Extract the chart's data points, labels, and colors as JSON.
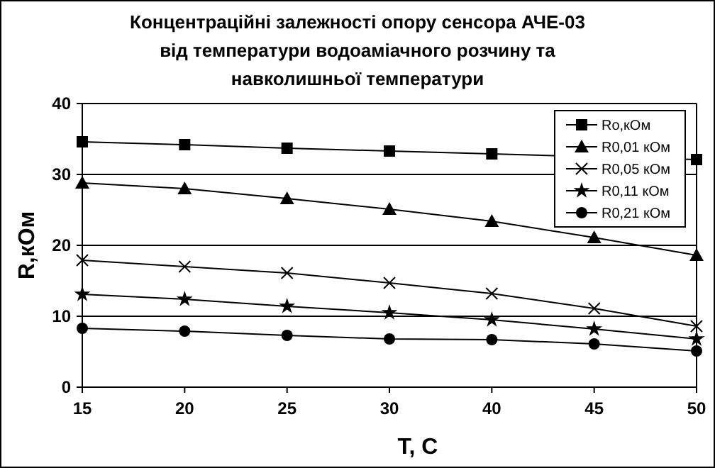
{
  "chart_data": {
    "type": "line",
    "title": "Концентраційні залежності опору сенсора АЧЕ-03\nвід температури водоаміачного розчину та\nнавколишньої температури",
    "xlabel": "T, C",
    "ylabel": "R,кОм",
    "categories": [
      "15",
      "20",
      "25",
      "30",
      "40",
      "45",
      "50"
    ],
    "ylim": [
      0,
      40
    ],
    "yticks": [
      0,
      10,
      20,
      30,
      40
    ],
    "grid": "y",
    "legend": "top right",
    "series": [
      {
        "name": "Ro,кОм",
        "color": "#000000",
        "marker": "square",
        "values": [
          34.6,
          34.2,
          33.7,
          33.3,
          32.9,
          null,
          32.1
        ]
      },
      {
        "name": "R0,01 кОм",
        "color": "#000000",
        "marker": "triangle",
        "values": [
          28.8,
          28.0,
          26.6,
          25.1,
          23.4,
          21.1,
          18.6
        ]
      },
      {
        "name": "R0,05 кОм",
        "color": "#000000",
        "marker": "cross",
        "values": [
          17.9,
          17.0,
          16.1,
          14.7,
          13.2,
          11.1,
          8.6
        ]
      },
      {
        "name": "R0,11 кОм",
        "color": "#000000",
        "marker": "star",
        "values": [
          13.1,
          12.4,
          11.4,
          10.5,
          9.5,
          8.2,
          6.8
        ]
      },
      {
        "name": "R0,21 кОм",
        "color": "#000000",
        "marker": "circle",
        "values": [
          8.3,
          7.9,
          7.3,
          6.8,
          6.7,
          6.1,
          5.1
        ]
      }
    ]
  }
}
